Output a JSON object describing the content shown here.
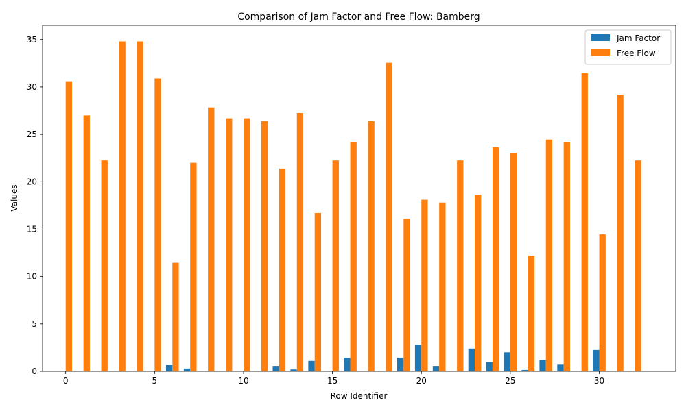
{
  "chart_data": {
    "type": "bar",
    "title": "Comparison of Jam Factor and Free Flow: Bamberg",
    "xlabel": "Row Identifier",
    "ylabel": "Values",
    "x": [
      0,
      1,
      2,
      3,
      4,
      5,
      6,
      7,
      8,
      9,
      10,
      11,
      12,
      13,
      14,
      15,
      16,
      17,
      18,
      19,
      20,
      21,
      22,
      23,
      24,
      25,
      26,
      27,
      28,
      29,
      30,
      31,
      32
    ],
    "xlim": [
      -1.3,
      34.3
    ],
    "ylim": [
      0,
      36.5
    ],
    "xticks": [
      0,
      5,
      10,
      15,
      20,
      25,
      30
    ],
    "yticks": [
      0,
      5,
      10,
      15,
      20,
      25,
      30,
      35
    ],
    "grid": false,
    "legend": "top-right",
    "series": [
      {
        "name": "Jam Factor",
        "color": "#1f77b4",
        "values": [
          0,
          0,
          0,
          0,
          0,
          0,
          0.65,
          0.3,
          0,
          0,
          0,
          0,
          0.5,
          0.2,
          1.1,
          0,
          1.45,
          0,
          0,
          1.45,
          2.8,
          0.5,
          0,
          2.4,
          1.0,
          2.0,
          0.15,
          1.2,
          0.7,
          0,
          2.25,
          0,
          0
        ]
      },
      {
        "name": "Free Flow",
        "color": "#ff7f0e",
        "values": [
          30.6,
          27.0,
          22.25,
          34.8,
          34.8,
          30.9,
          11.45,
          22.0,
          27.85,
          26.7,
          26.7,
          26.4,
          21.4,
          27.25,
          16.7,
          22.25,
          24.2,
          26.4,
          32.55,
          16.1,
          18.1,
          17.8,
          22.25,
          18.65,
          23.65,
          23.05,
          12.2,
          24.45,
          24.2,
          31.45,
          14.45,
          29.2,
          22.25
        ]
      }
    ]
  }
}
